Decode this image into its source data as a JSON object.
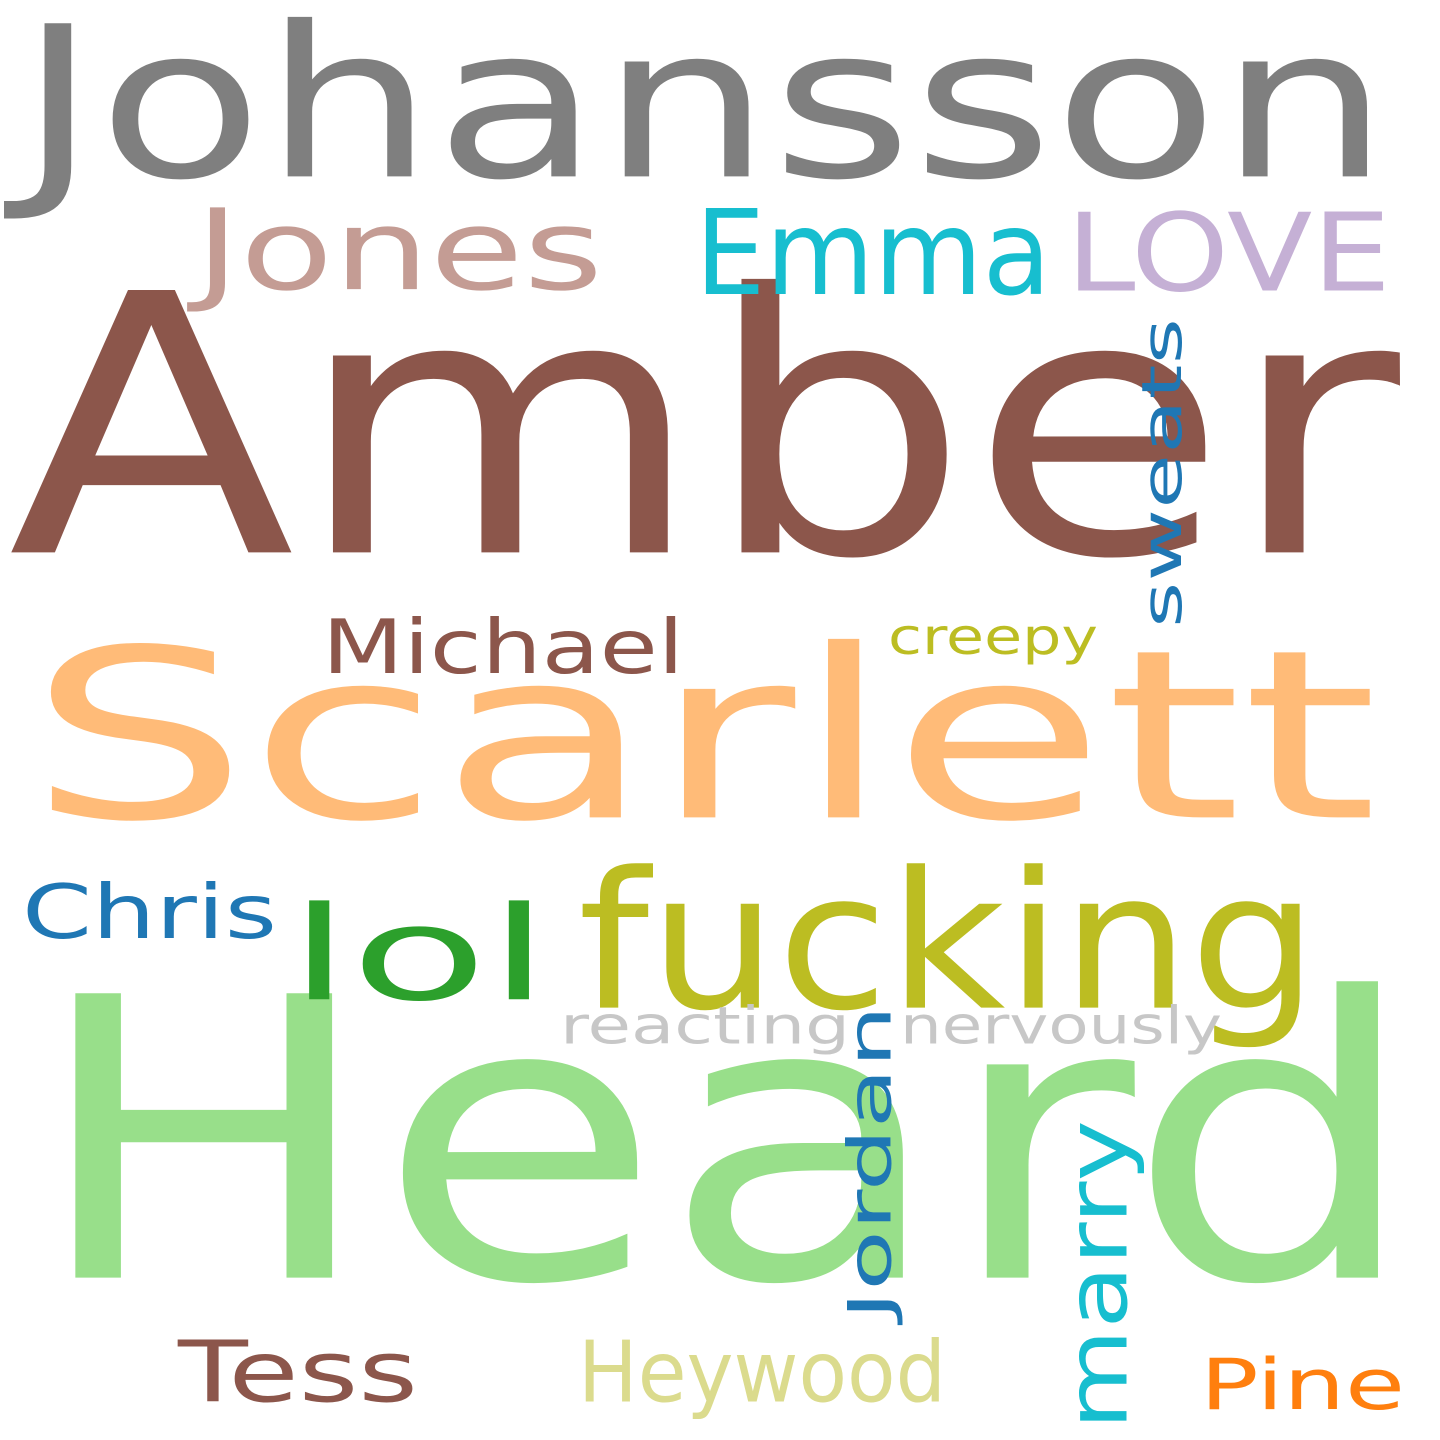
{
  "words": [
    {
      "text": "Johansson",
      "color": "#7f7f7f",
      "rotated": false
    },
    {
      "text": "Amber",
      "color": "#8c564b",
      "rotated": false
    },
    {
      "text": "Heard",
      "color": "#98df8a",
      "rotated": false
    },
    {
      "text": "Scarlett",
      "color": "#ffbb78",
      "rotated": false
    },
    {
      "text": "fucking",
      "color": "#bcbd22",
      "rotated": false
    },
    {
      "text": "Jones",
      "color": "#c49c94",
      "rotated": false
    },
    {
      "text": "Emma",
      "color": "#17becf",
      "rotated": false
    },
    {
      "text": "LOVE",
      "color": "#c5b0d5",
      "rotated": false
    },
    {
      "text": "lol",
      "color": "#2ca02c",
      "rotated": false
    },
    {
      "text": "sweats",
      "color": "#1f77b4",
      "rotated": true
    },
    {
      "text": "Michael",
      "color": "#8c564b",
      "rotated": false
    },
    {
      "text": "creepy",
      "color": "#bcbd22",
      "rotated": false
    },
    {
      "text": "Chris",
      "color": "#1f77b4",
      "rotated": false
    },
    {
      "text": "reacting",
      "color": "#c7c7c7",
      "rotated": false
    },
    {
      "text": "nervously",
      "color": "#c7c7c7",
      "rotated": false
    },
    {
      "text": "Jordan",
      "color": "#1f77b4",
      "rotated": true
    },
    {
      "text": "marry",
      "color": "#17becf",
      "rotated": true
    },
    {
      "text": "Tess",
      "color": "#8c564b",
      "rotated": false
    },
    {
      "text": "Heywood",
      "color": "#dbdb8d",
      "rotated": false
    },
    {
      "text": "Pine",
      "color": "#ff7f0e",
      "rotated": false
    }
  ]
}
